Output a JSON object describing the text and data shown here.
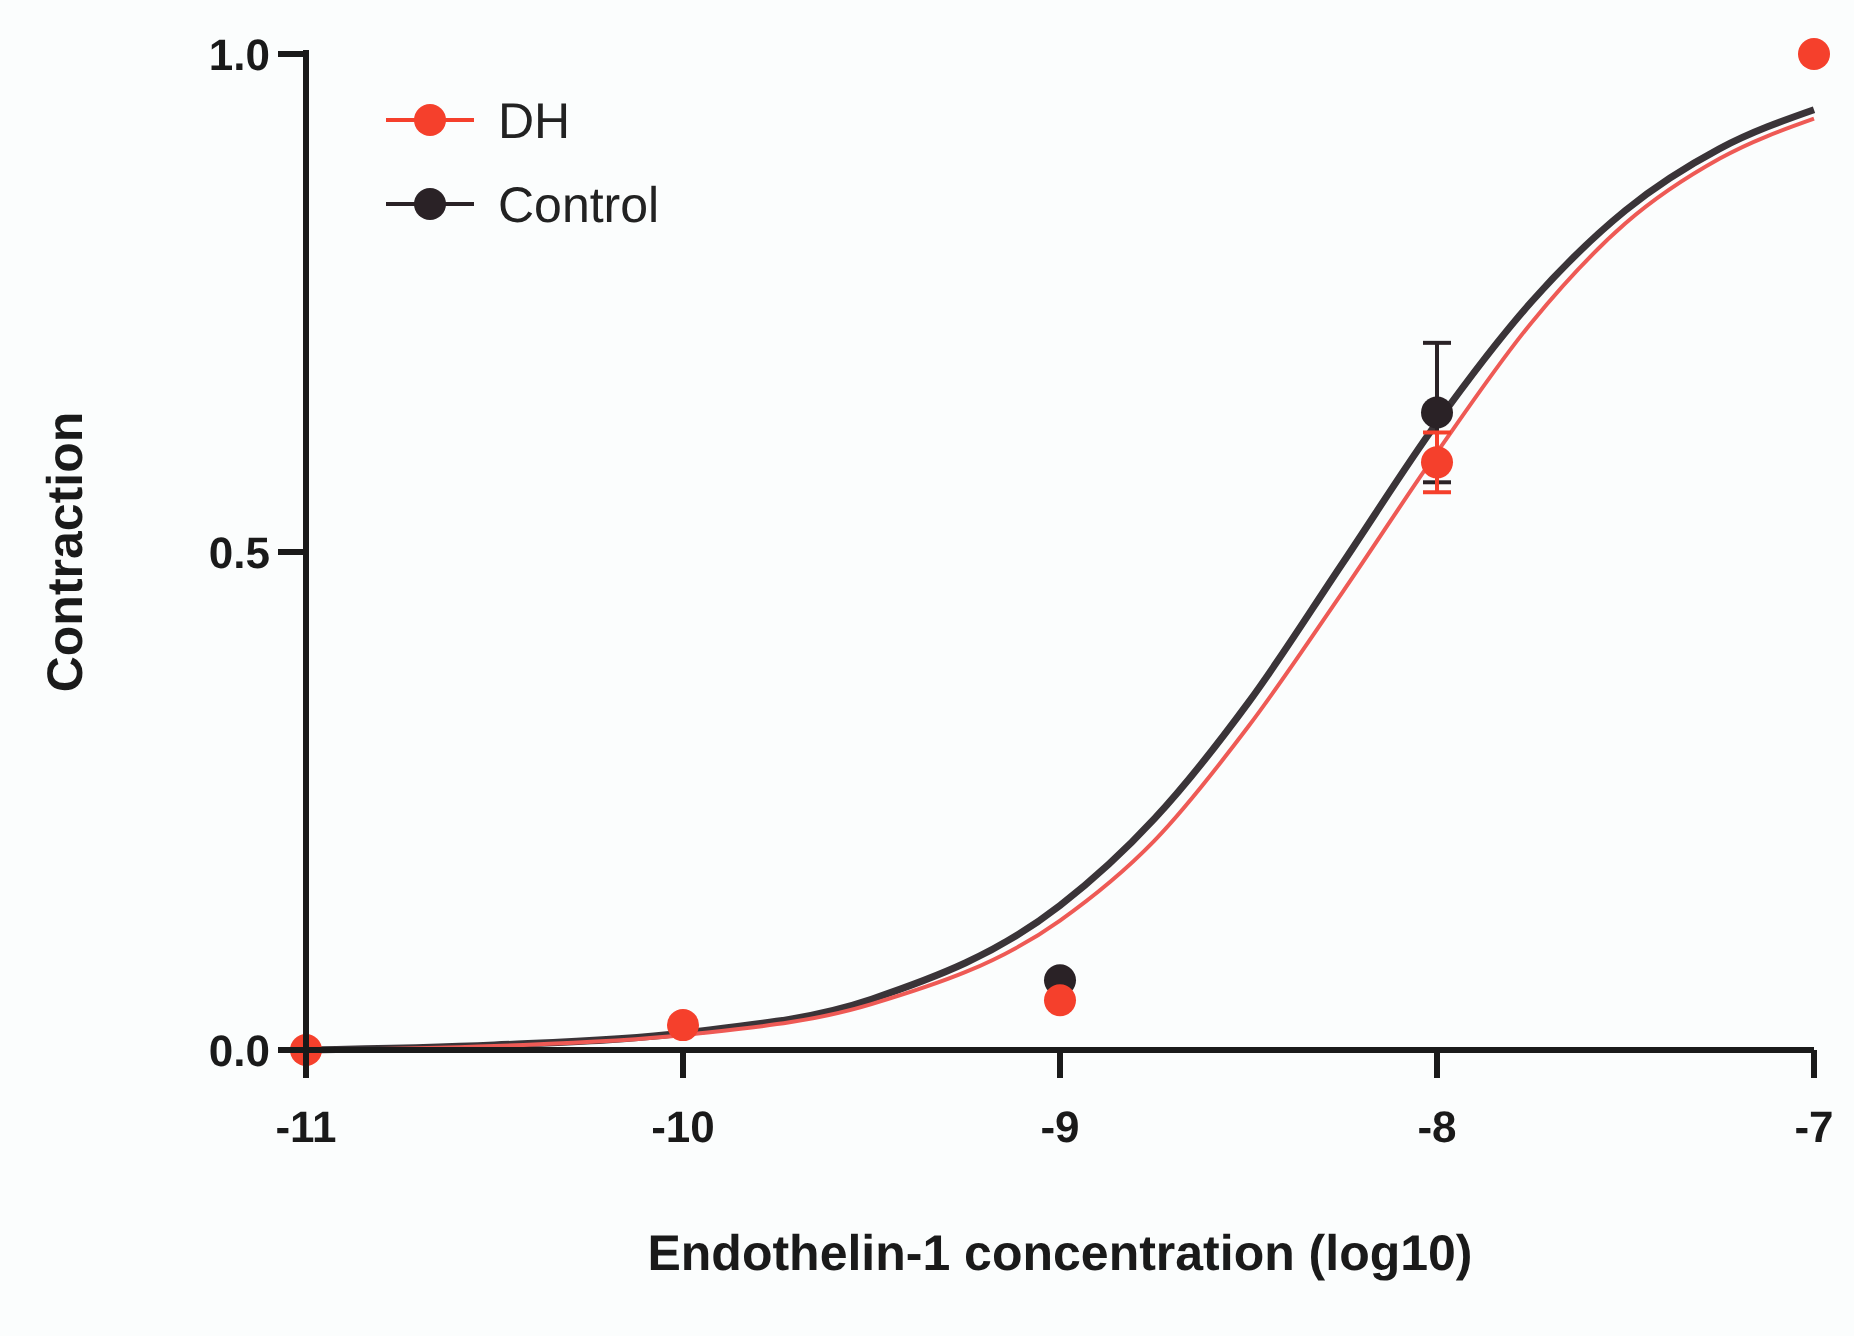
{
  "chart_data": {
    "type": "scatter",
    "xlabel": "Endothelin-1 concentration (log10)",
    "ylabel": "Contraction",
    "xlim": [
      -11,
      -7
    ],
    "ylim": [
      0,
      1
    ],
    "xticks": [
      -11,
      -10,
      -9,
      -8,
      -7
    ],
    "yticks": [
      {
        "value": 0,
        "label": "0.0"
      },
      {
        "value": 0.5,
        "label": "0.5"
      },
      {
        "value": 1,
        "label": "1.0"
      }
    ],
    "grid": false,
    "legend": "top left",
    "marker": "circle",
    "x": [
      -11,
      -10,
      -9,
      -8,
      -7
    ],
    "series": [
      {
        "name": "Control",
        "color": "#2a2226",
        "values": [
          null,
          null,
          0.07,
          0.64,
          null
        ],
        "errors": [
          null,
          null,
          null,
          0.07,
          null
        ]
      },
      {
        "name": "DH",
        "color": "#f5402c",
        "values": [
          0,
          0.025,
          0.05,
          0.59,
          1.0
        ],
        "errors": [
          null,
          null,
          null,
          0.03,
          null
        ]
      },
      {
        "type": "line",
        "marker": "none",
        "color": "#3a3438",
        "x": [
          -11,
          -10.5,
          -10,
          -9.5,
          -9,
          -8.75,
          -8.5,
          -8.25,
          -8,
          -7.75,
          -7.5,
          -7.25,
          -7
        ],
        "values": [
          0,
          0.005,
          0.017,
          0.051,
          0.145,
          0.232,
          0.349,
          0.489,
          0.63,
          0.751,
          0.843,
          0.905,
          0.944
        ]
      },
      {
        "type": "line",
        "marker": "none",
        "color": "#ee5a55",
        "x": [
          -11,
          -10.5,
          -10,
          -9.5,
          -9,
          -8.75,
          -8.5,
          -8.25,
          -8,
          -7.75,
          -7.5,
          -7.25,
          -7
        ],
        "values": [
          0,
          0.004,
          0.015,
          0.046,
          0.13,
          0.21,
          0.325,
          0.46,
          0.6,
          0.73,
          0.83,
          0.895,
          0.935
        ]
      }
    ]
  }
}
